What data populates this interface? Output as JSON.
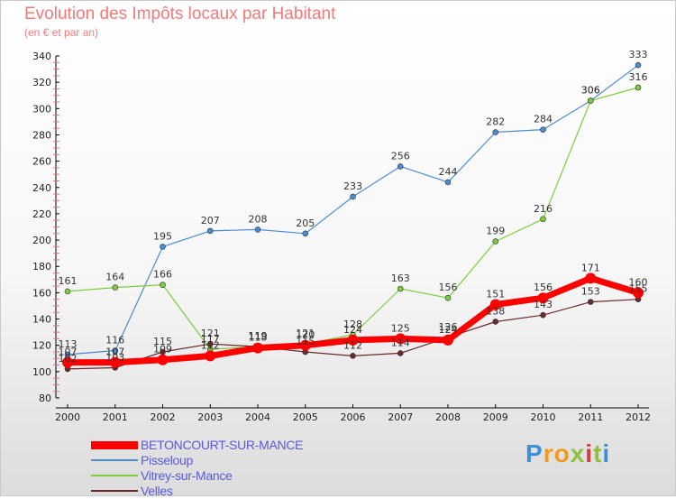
{
  "title": "Evolution des Impôts locaux par Habitant",
  "subtitle": "(en € et par an)",
  "logo": {
    "letters": [
      "P",
      "r",
      "o",
      "x",
      "i",
      "t",
      "i"
    ],
    "colors": [
      "#3e8fd6",
      "#f39a1e",
      "#f39a1e",
      "#8fc23d",
      "#e2373f",
      "#8fc23d",
      "#3e8fd6"
    ]
  },
  "chart_data": {
    "type": "line",
    "x": [
      "2000",
      "2001",
      "2002",
      "2003",
      "2004",
      "2005",
      "2006",
      "2007",
      "2008",
      "2009",
      "2010",
      "2011",
      "2012"
    ],
    "ylim": [
      80,
      340
    ],
    "yticks": [
      80,
      100,
      120,
      140,
      160,
      180,
      200,
      220,
      240,
      260,
      280,
      300,
      320,
      340
    ],
    "grid": false,
    "legend_position": "bottom-left",
    "series": [
      {
        "name": "BETONCOURT-SUR-MANCE",
        "color": "#ff0000",
        "values": [
          107,
          107,
          109,
          112,
          118,
          120,
          124,
          125,
          124,
          151,
          156,
          171,
          160
        ],
        "labels": [
          "107",
          "107",
          "109",
          "112",
          "118",
          "120",
          "124",
          "125",
          "124",
          "151",
          "156",
          "171",
          "160"
        ]
      },
      {
        "name": "Pisseloup",
        "color": "#4a8cd1",
        "values": [
          113,
          116,
          195,
          207,
          208,
          205,
          233,
          256,
          244,
          282,
          284,
          306,
          333
        ],
        "labels": [
          "113",
          "116",
          "195",
          "207",
          "208",
          "205",
          "233",
          "256",
          "244",
          "282",
          "284",
          "306",
          "333"
        ]
      },
      {
        "name": "Vitrey-sur-Mance",
        "color": "#7ccd3c",
        "values": [
          161,
          164,
          166,
          117,
          119,
          121,
          128,
          163,
          156,
          199,
          216,
          306,
          316
        ],
        "labels": [
          "161",
          "164",
          "166",
          "117",
          "119",
          "121",
          "128",
          "163",
          "156",
          "199",
          "216",
          "306",
          "316"
        ]
      },
      {
        "name": "Velles",
        "color": "#6b2b2b",
        "values": [
          102,
          103,
          115,
          121,
          119,
          115,
          112,
          114,
          126,
          138,
          143,
          153,
          155
        ],
        "labels": [
          "102",
          "103",
          "115",
          "121",
          "119",
          "115",
          "112",
          "114",
          "126",
          "138",
          "143",
          "153",
          "155"
        ]
      }
    ]
  }
}
